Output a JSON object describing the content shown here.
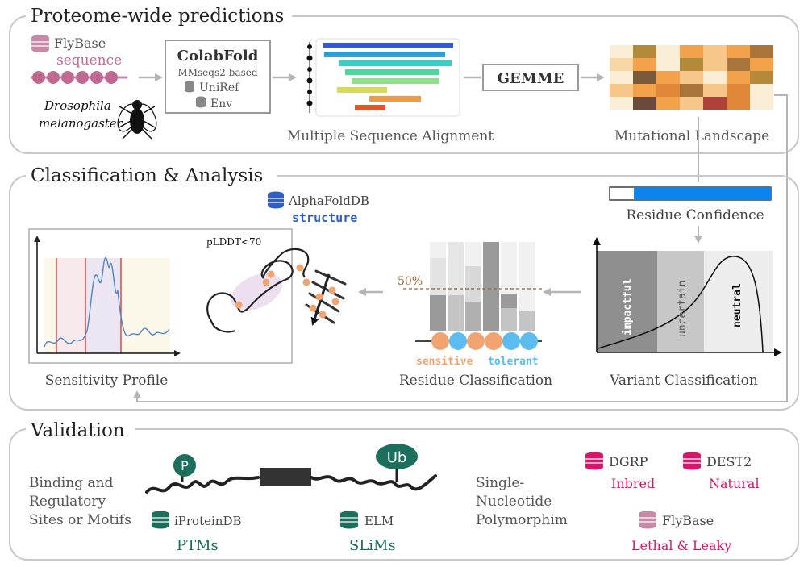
{
  "sections": {
    "proteome": {
      "title": "Proteome-wide predictions"
    },
    "classification": {
      "title": "Classification & Analysis"
    },
    "validation": {
      "title": "Validation"
    }
  },
  "proteome": {
    "flybase_db": "FlyBase",
    "sequence_label": "sequence",
    "organism_line1": "Drosophila",
    "organism_line2": "melanogaster",
    "colabfold_title": "ColabFold",
    "colabfold_sub": "MMseqs2-based",
    "uniref_db": "UniRef",
    "env_db": "Env",
    "msa_label": "Multiple Sequence Alignment",
    "gemme_label": "GEMME",
    "landscape_label": "Mutational Landscape"
  },
  "classification": {
    "residue_confidence_label": "Residue Confidence",
    "variant_classification_label": "Variant Classification",
    "impactful_label": "impactful",
    "uncertain_label": "uncertain",
    "neutral_label": "neutral",
    "residue_classification_label": "Residue Classification",
    "threshold_label": "50%",
    "sensitive_label": "sensitive",
    "tolerant_label": "tolerant",
    "alphafold_db": "AlphaFoldDB",
    "structure_label": "structure",
    "plddt_label": "pLDDT<70",
    "sensitivity_profile_label": "Sensitivity Profile"
  },
  "validation": {
    "binding_line1": "Binding and",
    "binding_line2": "Regulatory",
    "binding_line3": "Sites or Motifs",
    "phospho_label": "P",
    "ub_label": "Ub",
    "iproteindb_db": "iProteinDB",
    "ptms_label": "PTMs",
    "elm_db": "ELM",
    "slims_label": "SLiMs",
    "snp_line1": "Single-",
    "snp_line2": "Nucleotide",
    "snp_line3": "Polymorphim",
    "dgrp_db": "DGRP",
    "dgrp_sub": "Inbred",
    "dest2_db": "DEST2",
    "dest2_sub": "Natural",
    "flybase2_db": "FlyBase",
    "flybase2_sub": "Lethal & Leaky"
  },
  "colors": {
    "panel_border": "#c8c8c8",
    "magenta": "#d6156b",
    "teal": "#1c6e5d",
    "blue": "#2f5fc4",
    "orange": "#f2a470",
    "light_blue": "#5bbcf0",
    "conf_blue": "#0a85f0"
  }
}
